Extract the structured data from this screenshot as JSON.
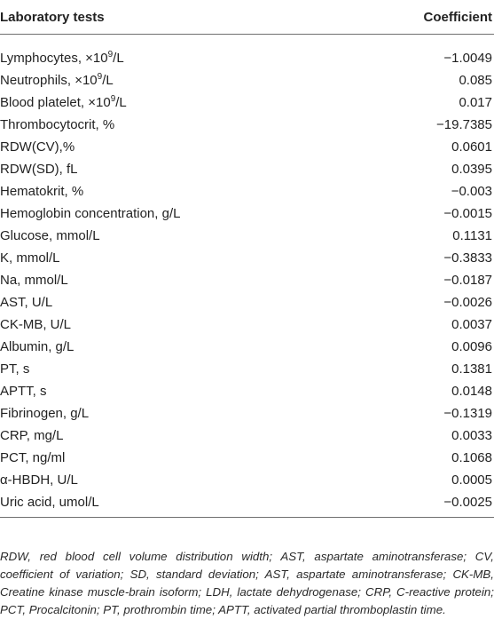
{
  "table": {
    "headers": {
      "label": "Laboratory tests",
      "coefficient": "Coefficient"
    },
    "rows": [
      {
        "pre": "Lymphocytes, ×10",
        "sup": "9",
        "post": "/L",
        "coefficient": "−1.0049"
      },
      {
        "pre": "Neutrophils, ×10",
        "sup": "9",
        "post": "/L",
        "coefficient": "0.085"
      },
      {
        "pre": "Blood platelet, ×10",
        "sup": "9",
        "post": "/L",
        "coefficient": "0.017"
      },
      {
        "pre": "Thrombocytocrit, %",
        "sup": "",
        "post": "",
        "coefficient": "−19.7385"
      },
      {
        "pre": "RDW(CV),%",
        "sup": "",
        "post": "",
        "coefficient": "0.0601"
      },
      {
        "pre": "RDW(SD), fL",
        "sup": "",
        "post": "",
        "coefficient": "0.0395"
      },
      {
        "pre": "Hematokrit, %",
        "sup": "",
        "post": "",
        "coefficient": "−0.003"
      },
      {
        "pre": "Hemoglobin concentration, g/L",
        "sup": "",
        "post": "",
        "coefficient": "−0.0015"
      },
      {
        "pre": "Glucose, mmol/L",
        "sup": "",
        "post": "",
        "coefficient": "0.1131"
      },
      {
        "pre": "K, mmol/L",
        "sup": "",
        "post": "",
        "coefficient": "−0.3833"
      },
      {
        "pre": "Na, mmol/L",
        "sup": "",
        "post": "",
        "coefficient": "−0.0187"
      },
      {
        "pre": "AST, U/L",
        "sup": "",
        "post": "",
        "coefficient": "−0.0026"
      },
      {
        "pre": "CK-MB, U/L",
        "sup": "",
        "post": "",
        "coefficient": "0.0037"
      },
      {
        "pre": "Albumin, g/L",
        "sup": "",
        "post": "",
        "coefficient": "0.0096"
      },
      {
        "pre": "PT, s",
        "sup": "",
        "post": "",
        "coefficient": "0.1381"
      },
      {
        "pre": "APTT, s",
        "sup": "",
        "post": "",
        "coefficient": "0.0148"
      },
      {
        "pre": "Fibrinogen, g/L",
        "sup": "",
        "post": "",
        "coefficient": "−0.1319"
      },
      {
        "pre": "CRP, mg/L",
        "sup": "",
        "post": "",
        "coefficient": "0.0033"
      },
      {
        "pre": "PCT, ng/ml",
        "sup": "",
        "post": "",
        "coefficient": "0.1068"
      },
      {
        "pre": "α-HBDH, U/L",
        "sup": "",
        "post": "",
        "coefficient": "0.0005"
      },
      {
        "pre": "Uric acid, umol/L",
        "sup": "",
        "post": "",
        "coefficient": "−0.0025"
      }
    ]
  },
  "footnote": "RDW, red blood cell volume distribution width; AST, aspartate aminotransferase; CV, coefficient of variation; SD, standard deviation; AST, aspartate aminotransferase; CK-MB, Creatine kinase muscle-brain isoform; LDH, lactate dehydrogenase; CRP, C-reactive protein; PCT, Procalcitonin; PT, prothrombin time; APTT, activated partial thromboplastin time."
}
